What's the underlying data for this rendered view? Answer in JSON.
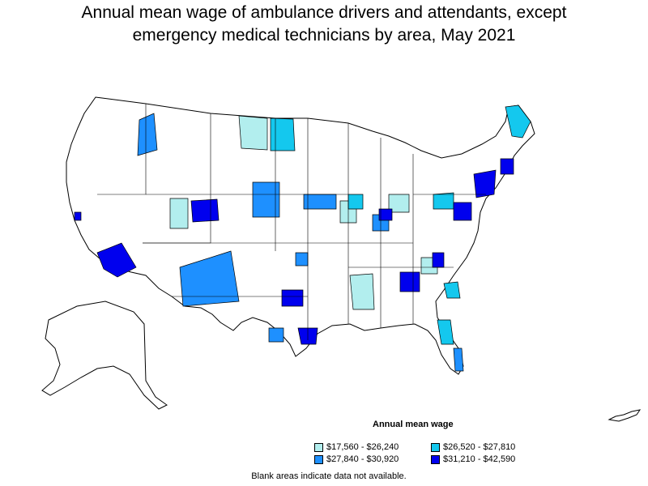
{
  "title_line1": "Annual mean wage of ambulance drivers and attendants, except",
  "title_line2": "emergency medical technicians by area, May 2021",
  "legend": {
    "title": "Annual mean wage",
    "items": [
      {
        "label": "$17,560 - $26,240",
        "color": "#b2eeee"
      },
      {
        "label": "$26,520 - $27,810",
        "color": "#14c8ee"
      },
      {
        "label": "$27,840 - $30,920",
        "color": "#1e90ff"
      },
      {
        "label": "$31,210 - $42,590",
        "color": "#0000ee"
      }
    ]
  },
  "footnote": "Blank areas indicate data not available."
}
